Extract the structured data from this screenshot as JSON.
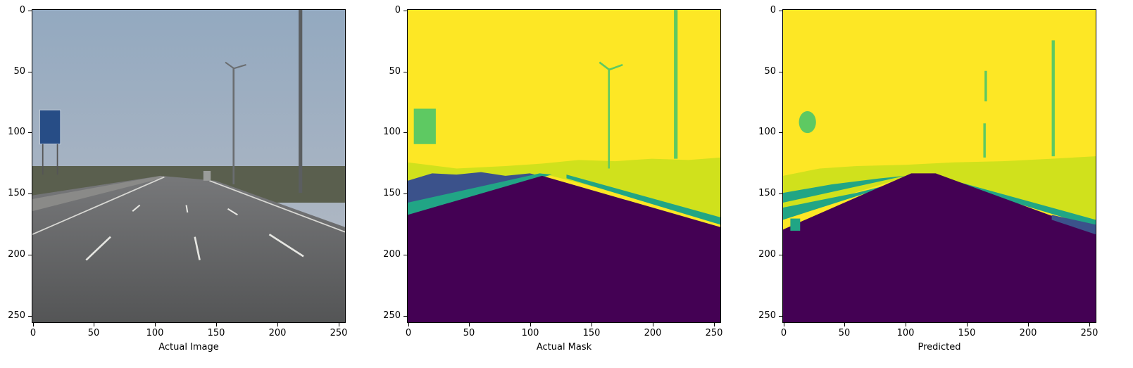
{
  "panels": [
    {
      "xlabel": "Actual Image"
    },
    {
      "xlabel": "Actual Mask"
    },
    {
      "xlabel": "Predicted"
    }
  ],
  "axis": {
    "xlim": [
      0,
      255
    ],
    "ylim": [
      255,
      0
    ],
    "xticks": [
      "0",
      "50",
      "100",
      "150",
      "200",
      "250"
    ],
    "yticks": [
      "0",
      "50",
      "100",
      "150",
      "200",
      "250"
    ]
  },
  "colors": {
    "sky": "#fde725",
    "vegetation": "#d0e11c",
    "pole_sign": "#5ec962",
    "barrier": "#21a585",
    "divider": "#3b528b",
    "road": "#440154"
  }
}
